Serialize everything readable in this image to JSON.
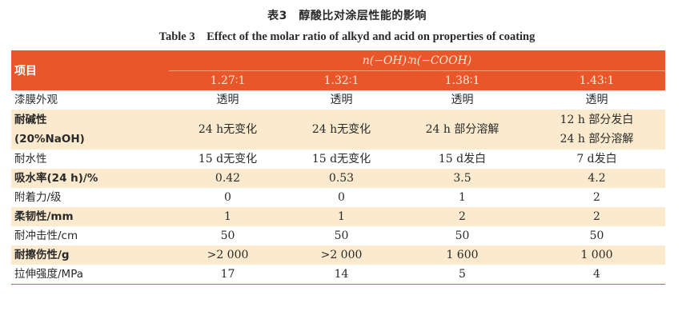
{
  "caption": {
    "cn": "表3　醇酸比对涂层性能的影响",
    "en": "Table 3　Effect of the molar ratio of alkyd and acid on properties of coating"
  },
  "table": {
    "item_header": "项目",
    "ratio_header": "n(−OH)∶n(−COOH)",
    "ratios": [
      "1.27∶1",
      "1.32∶1",
      "1.38∶1",
      "1.43∶1"
    ],
    "rows": [
      {
        "label": [
          "漆膜外观"
        ],
        "values": [
          [
            "透明"
          ],
          [
            "透明"
          ],
          [
            "透明"
          ],
          [
            "透明"
          ]
        ],
        "tinted": false
      },
      {
        "label": [
          "耐碱性",
          "(20%NaOH)"
        ],
        "values": [
          [
            "24 h无变化"
          ],
          [
            "24 h无变化"
          ],
          [
            "24 h 部分溶解"
          ],
          [
            "12 h 部分发白",
            "24 h 部分溶解"
          ]
        ],
        "tinted": true
      },
      {
        "label": [
          "耐水性"
        ],
        "values": [
          [
            "15 d无变化"
          ],
          [
            "15 d无变化"
          ],
          [
            "15 d发白"
          ],
          [
            "7 d发白"
          ]
        ],
        "tinted": false
      },
      {
        "label": [
          "吸水率(24 h)/%"
        ],
        "values": [
          [
            "0.42"
          ],
          [
            "0.53"
          ],
          [
            "3.5"
          ],
          [
            "4.2"
          ]
        ],
        "tinted": true
      },
      {
        "label": [
          "附着力/级"
        ],
        "values": [
          [
            "0"
          ],
          [
            "0"
          ],
          [
            "1"
          ],
          [
            "2"
          ]
        ],
        "tinted": false
      },
      {
        "label": [
          "柔韧性/mm"
        ],
        "values": [
          [
            "1"
          ],
          [
            "1"
          ],
          [
            "2"
          ],
          [
            "2"
          ]
        ],
        "tinted": true
      },
      {
        "label": [
          "耐冲击性/cm"
        ],
        "values": [
          [
            "50"
          ],
          [
            "50"
          ],
          [
            "50"
          ],
          [
            "50"
          ]
        ],
        "tinted": false
      },
      {
        "label": [
          "耐擦伤性/g"
        ],
        "values": [
          [
            ">2 000"
          ],
          [
            ">2 000"
          ],
          [
            "1 600"
          ],
          [
            "1 000"
          ]
        ],
        "tinted": true
      },
      {
        "label": [
          "拉伸强度/MPa"
        ],
        "values": [
          [
            "17"
          ],
          [
            "14"
          ],
          [
            "5"
          ],
          [
            "4"
          ]
        ],
        "tinted": false
      }
    ]
  },
  "colors": {
    "header": "#e8562a",
    "tint": "#fbeacd"
  }
}
